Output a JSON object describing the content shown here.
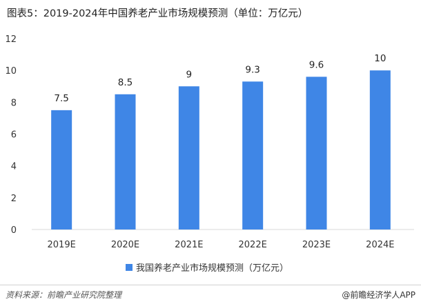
{
  "title": "图表5：2019-2024年中国养老产业市场规模预测（单位：万亿元）",
  "chart_data": {
    "type": "bar",
    "categories": [
      "2019E",
      "2020E",
      "2021E",
      "2022E",
      "2023E",
      "2024E"
    ],
    "values": [
      7.5,
      8.5,
      9,
      9.3,
      9.6,
      10
    ],
    "data_labels": [
      "7.5",
      "8.5",
      "9",
      "9.3",
      "9.6",
      "10"
    ],
    "series_name": "我国养老产业市场规模预测（万亿元）",
    "ylim": [
      0,
      12
    ],
    "yticks": [
      0,
      2,
      4,
      6,
      8,
      10,
      12
    ],
    "grid": false,
    "legend_position": "bottom",
    "bar_color": "#3f86e6"
  },
  "footer": {
    "source": "资料来源：前瞻产业研究院整理",
    "brand": "@前瞻经济学人APP"
  }
}
